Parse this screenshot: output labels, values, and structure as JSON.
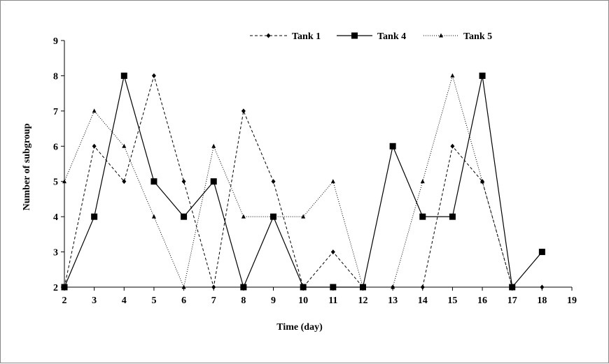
{
  "chart_data": {
    "type": "line",
    "title": "",
    "xlabel": "Time (day)",
    "ylabel": "Number of subgroup",
    "xlim": [
      2,
      19
    ],
    "ylim": [
      2,
      9
    ],
    "xticks": [
      "2",
      "3",
      "4",
      "5",
      "6",
      "7",
      "8",
      "9",
      "10",
      "11",
      "12",
      "13",
      "14",
      "15",
      "16",
      "17",
      "18",
      "19"
    ],
    "yticks": [
      "2",
      "3",
      "4",
      "5",
      "6",
      "7",
      "8",
      "9"
    ],
    "grid": false,
    "legend_position": "top-right",
    "x": [
      2,
      3,
      4,
      5,
      6,
      7,
      8,
      9,
      10,
      11,
      12,
      13,
      14,
      15,
      16,
      17,
      18
    ],
    "series": [
      {
        "name": "Tank 1",
        "line": "dashed",
        "marker": "diamond",
        "color": "#000000",
        "values": [
          2,
          6,
          5,
          8,
          5,
          2,
          7,
          5,
          2,
          3,
          2,
          2,
          2,
          6,
          5,
          2,
          2
        ]
      },
      {
        "name": "Tank 4",
        "line": "solid",
        "marker": "square",
        "color": "#000000",
        "values": [
          2,
          4,
          8,
          5,
          4,
          5,
          2,
          4,
          2,
          2,
          2,
          6,
          4,
          4,
          8,
          2,
          3
        ]
      },
      {
        "name": "Tank 5",
        "line": "dotted",
        "marker": "triangle",
        "color": "#000000",
        "values": [
          5,
          7,
          6,
          4,
          2,
          6,
          4,
          4,
          4,
          5,
          2,
          2,
          5,
          8,
          5,
          2,
          null
        ]
      }
    ]
  }
}
